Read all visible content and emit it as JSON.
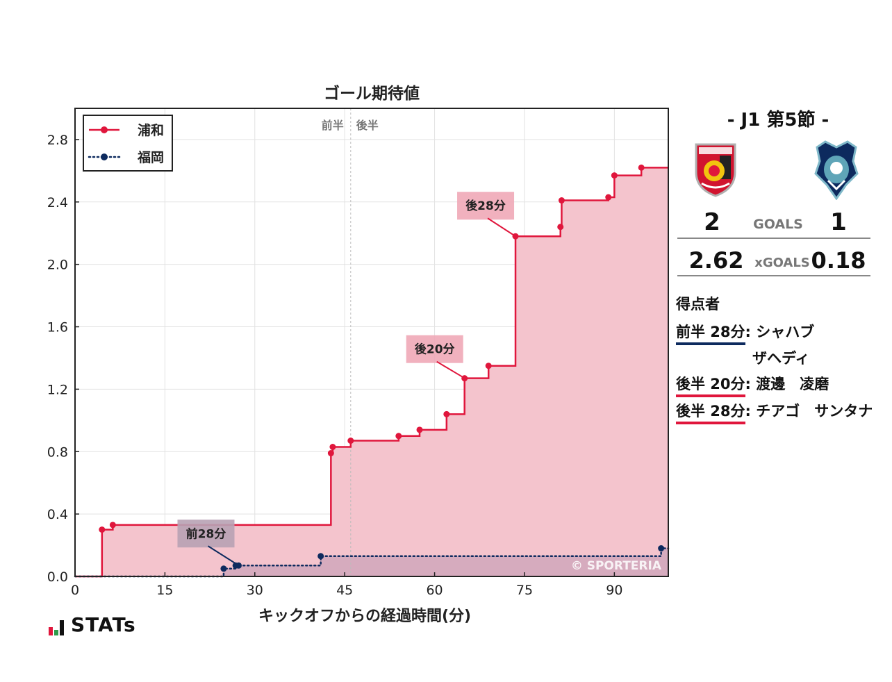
{
  "chart_data": {
    "type": "line",
    "title": "ゴール期待値",
    "xlabel": "キックオフからの経過時間(分)",
    "ylabel": "",
    "xlim": [
      0,
      99
    ],
    "ylim": [
      0,
      3.0
    ],
    "xticks": [
      0,
      15,
      30,
      45,
      60,
      75,
      90
    ],
    "yticks": [
      0.0,
      0.4,
      0.8,
      1.2,
      1.6,
      2.0,
      2.4,
      2.8
    ],
    "ytick_labels": [
      "0.0",
      "0.4",
      "0.8",
      "1.2",
      "1.6",
      "2.0",
      "2.4",
      "2.8"
    ],
    "grid": true,
    "legend_position": "top-left",
    "half_labels": {
      "first": "前半",
      "second": "後半",
      "halftime_x": 46
    },
    "watermark": "© SPORTERIA",
    "series": [
      {
        "name": "浦和",
        "color": "#e0163c",
        "fill": "#f4c4cd",
        "style": "solid",
        "points": [
          [
            4.5,
            0.3
          ],
          [
            6.3,
            0.33
          ],
          [
            42.7,
            0.79
          ],
          [
            43.0,
            0.83
          ],
          [
            46.0,
            0.87
          ],
          [
            54.0,
            0.9
          ],
          [
            57.5,
            0.94
          ],
          [
            62.0,
            1.04
          ],
          [
            65.0,
            1.27
          ],
          [
            69.0,
            1.35
          ],
          [
            73.5,
            2.18
          ],
          [
            81.0,
            2.24
          ],
          [
            81.2,
            2.41
          ],
          [
            89.0,
            2.43
          ],
          [
            90.0,
            2.57
          ],
          [
            94.5,
            2.62
          ],
          [
            99.0,
            2.62
          ]
        ]
      },
      {
        "name": "福岡",
        "color": "#0d2a5e",
        "fill": "#d3a8bd",
        "style": "dotted",
        "points": [
          [
            24.8,
            0.05
          ],
          [
            26.8,
            0.07
          ],
          [
            27.3,
            0.07
          ],
          [
            41.0,
            0.13
          ],
          [
            97.8,
            0.18
          ],
          [
            99.0,
            0.18
          ]
        ]
      }
    ],
    "annotations": [
      {
        "text": "後28分",
        "x": 73.5,
        "y": 2.18,
        "series": "浦和"
      },
      {
        "text": "後20分",
        "x": 65.0,
        "y": 1.27,
        "series": "浦和"
      },
      {
        "text": "前28分",
        "x": 27.3,
        "y": 0.07,
        "series": "福岡"
      }
    ]
  },
  "match": {
    "title": "-  J1 第5節  -",
    "home_goals": "2",
    "away_goals": "1",
    "goals_label": "GOALS",
    "home_xg": "2.62",
    "away_xg": "0.18",
    "xg_label": "xGOALS",
    "home_color": "#e0163c",
    "away_color": "#0d2a5e"
  },
  "scorers": {
    "title": "得点者",
    "items": [
      {
        "time": "前半 28分",
        "name": "シャハブ",
        "name2": "ザヘディ",
        "team": "away"
      },
      {
        "time": "後半 20分",
        "name": "渡邊　凌磨",
        "team": "home"
      },
      {
        "time": "後半 28分",
        "name": "チアゴ　サンタナ",
        "team": "home"
      }
    ]
  },
  "brand": {
    "logo_text": "STATs"
  }
}
